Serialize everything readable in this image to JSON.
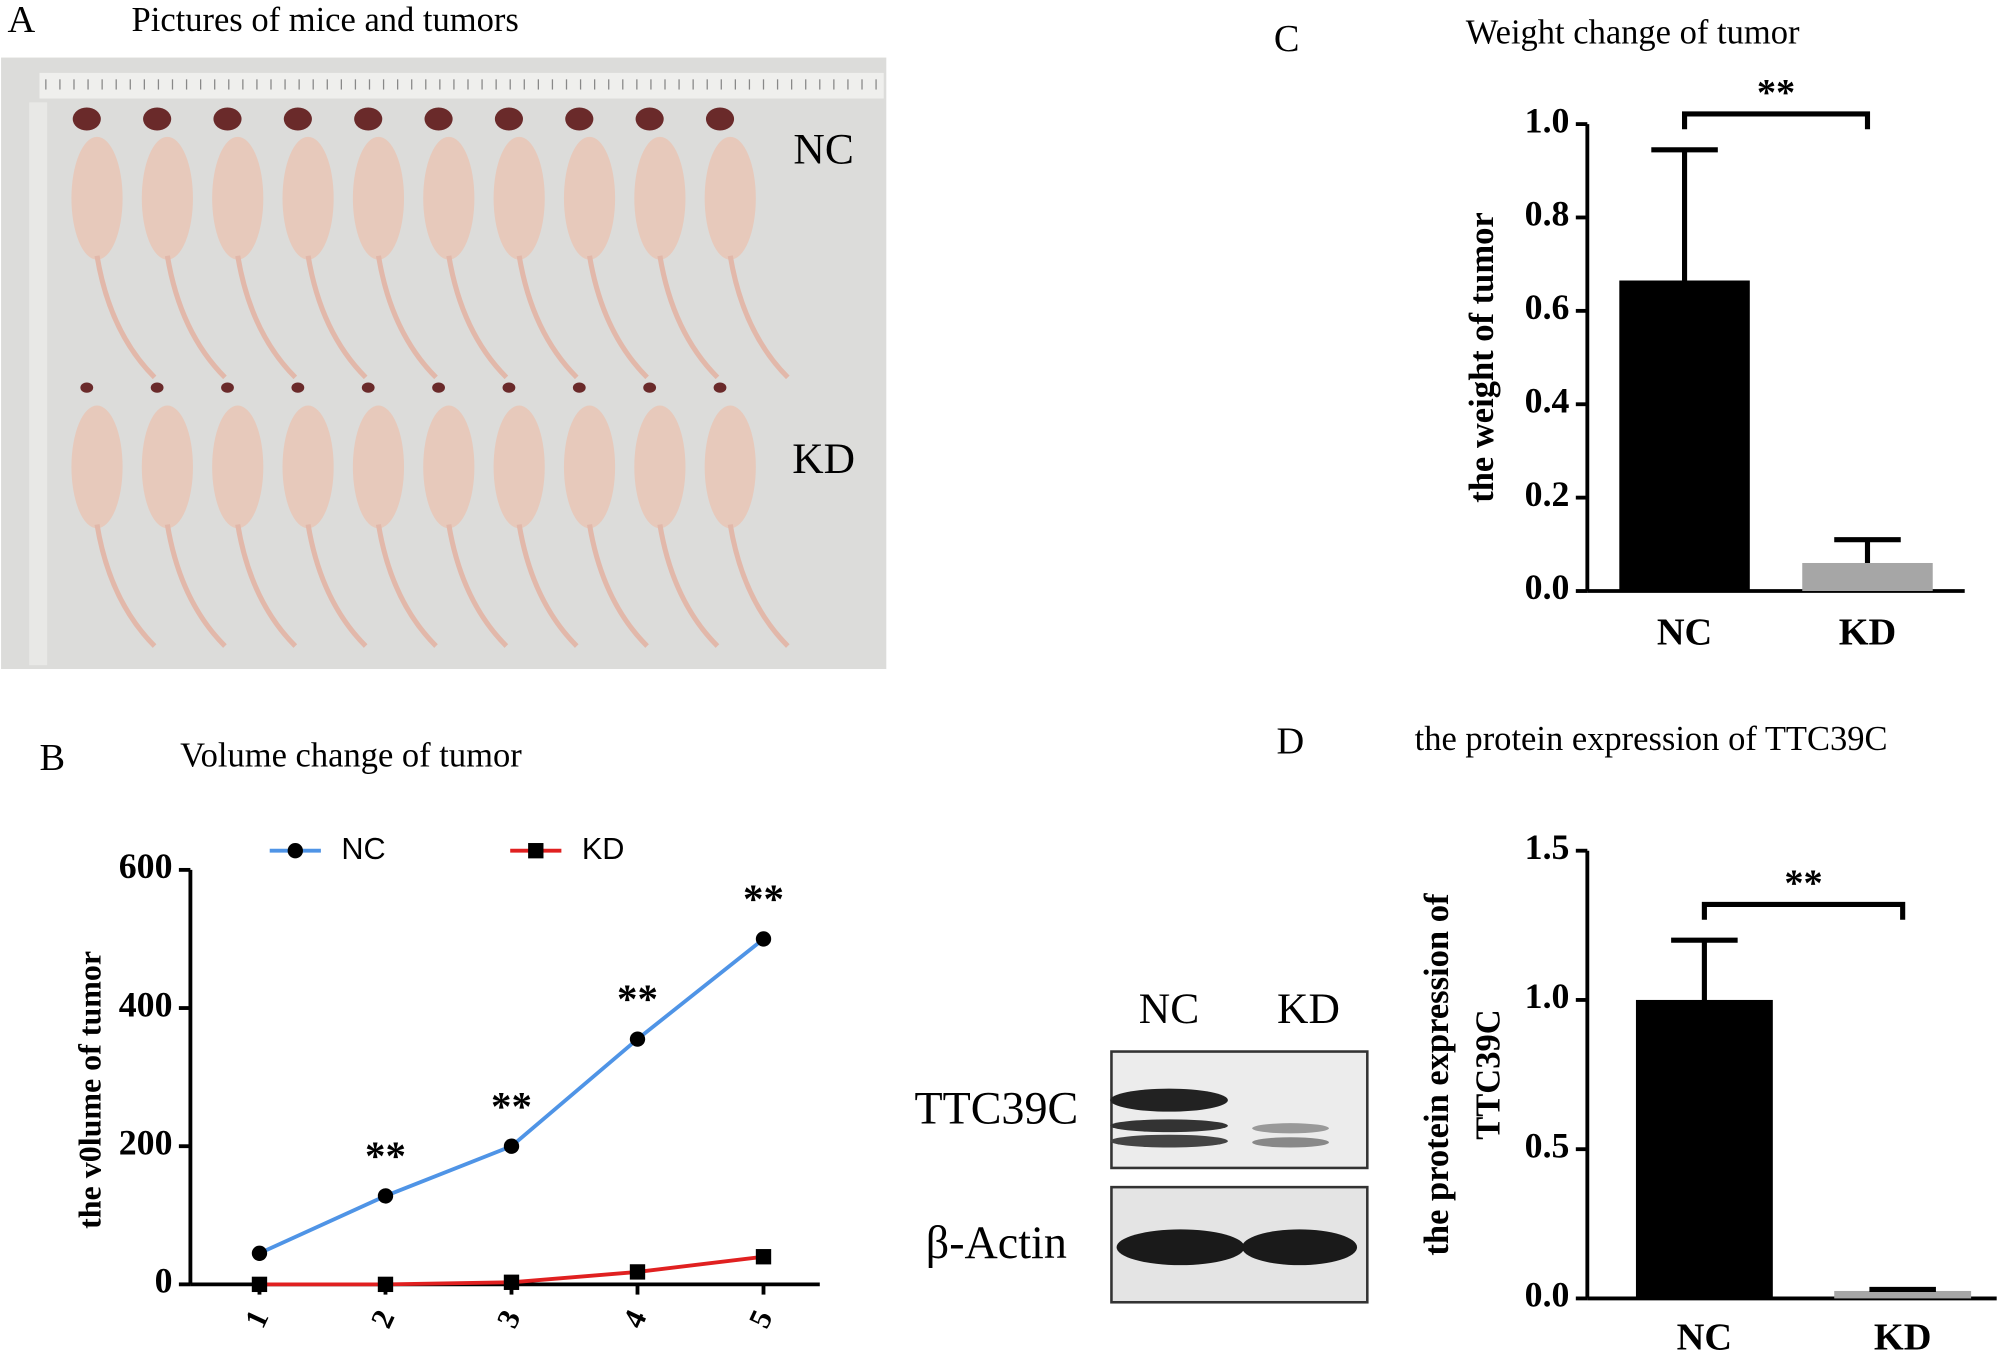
{
  "photo_panel": {
    "panel_label": "A",
    "title": "Pictures of mice and tumors",
    "row_labels": [
      "NC",
      "KD"
    ]
  },
  "blot_panel": {
    "lanes": [
      "NC",
      "KD"
    ],
    "bands": [
      "TTC39C",
      "β-Actin"
    ]
  },
  "chart_data": [
    {
      "type": "line",
      "panel_label": "B",
      "title": "Volume change of tumor",
      "ylabel": "the v0lume of tumor",
      "categories": [
        "1",
        "2",
        "3",
        "4",
        "5"
      ],
      "series": [
        {
          "name": "NC",
          "color": "#4f94e6",
          "marker": "circle",
          "values": [
            45,
            128,
            200,
            355,
            500
          ],
          "annotations": [
            null,
            "**",
            "**",
            "**",
            "**"
          ]
        },
        {
          "name": "KD",
          "color": "#e02020",
          "marker": "square",
          "values": [
            0,
            0,
            3,
            18,
            40
          ]
        }
      ],
      "ylim": [
        0,
        600
      ],
      "yticks": [
        0,
        200,
        400,
        600
      ]
    },
    {
      "type": "bar",
      "panel_label": "C",
      "title": "Weight change of tumor",
      "ylabel_lines": [
        "the weight of tumor"
      ],
      "categories": [
        "NC",
        "KD"
      ],
      "values": [
        0.665,
        0.06
      ],
      "errors": [
        0.28,
        0.05
      ],
      "colors": [
        "#000000",
        "#a6a6a6"
      ],
      "significance": "**",
      "ylim": [
        0,
        1.0
      ],
      "yticks": [
        {
          "value": 0,
          "label": "0.0"
        },
        0.2,
        0.4,
        0.6,
        0.8,
        {
          "value": 1,
          "label": "1.0"
        }
      ]
    },
    {
      "type": "bar",
      "panel_label": "D",
      "title": "the protein expression of TTC39C",
      "ylabel_lines": [
        "the protein expression of",
        "TTC39C"
      ],
      "categories": [
        "NC",
        "KD"
      ],
      "values": [
        1.0,
        0.025
      ],
      "errors": [
        0.2,
        0.005
      ],
      "colors": [
        "#000000",
        "#a6a6a6"
      ],
      "significance": "**",
      "ylim": [
        0,
        1.5
      ],
      "yticks": [
        {
          "value": 0,
          "label": "0.0"
        },
        0.5,
        {
          "value": 1,
          "label": "1.0"
        },
        1.5
      ]
    }
  ]
}
